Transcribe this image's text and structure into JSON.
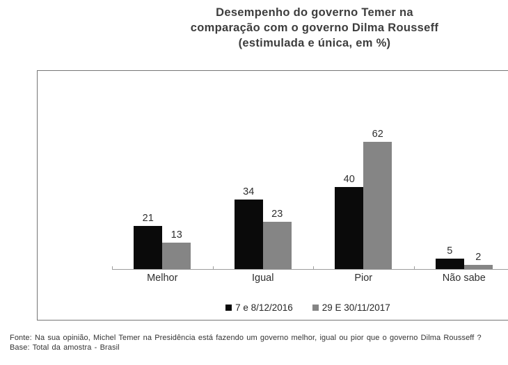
{
  "title": {
    "line1": "Desempenho do governo Temer na",
    "line2": "comparação com o governo Dilma Rousseff",
    "line3": "(estimulada e única, em %)"
  },
  "chart_data": {
    "type": "bar",
    "categories": [
      "Melhor",
      "Igual",
      "Pior",
      "Não sabe"
    ],
    "series": [
      {
        "name": "7 e 8/12/2016",
        "color": "#0a0a0a",
        "values": [
          21,
          34,
          40,
          5
        ]
      },
      {
        "name": "29 E 30/11/2017",
        "color": "#858585",
        "values": [
          13,
          23,
          62,
          2
        ]
      }
    ],
    "ylim": [
      0,
      70
    ],
    "grid": false,
    "legend_position": "bottom",
    "value_labels": true,
    "xlabel": "",
    "ylabel": ""
  },
  "footer": {
    "fonte": "Fonte: Na sua opinião, Michel Temer na Presidência está fazendo um governo melhor, igual ou pior que o governo Dilma Rousseff ?",
    "base": "Base: Total da amostra - Brasil"
  },
  "colors": {
    "series1": "#0a0a0a",
    "series2": "#858585",
    "box_border": "#757575",
    "axis": "#9c9c9c",
    "title_text": "#3d3d3d",
    "label_text": "#2e2e2e",
    "footer_text": "#333333"
  }
}
